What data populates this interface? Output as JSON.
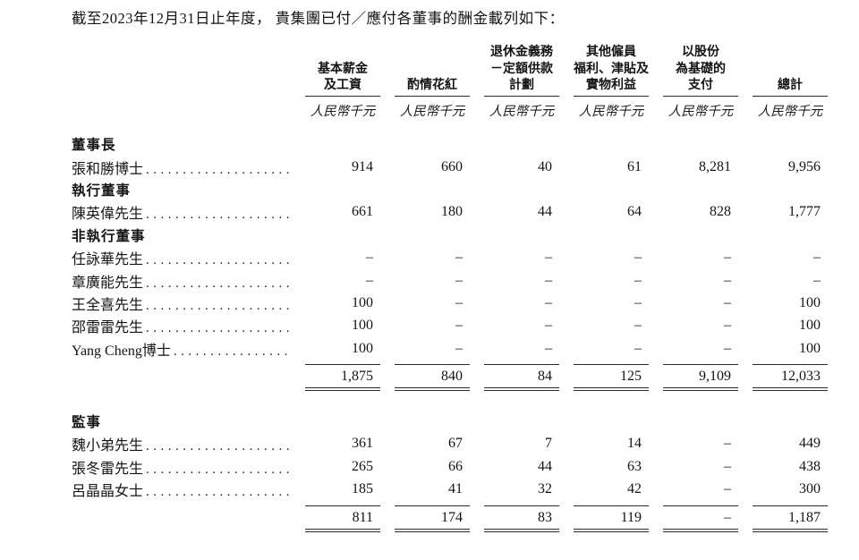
{
  "page": {
    "title_text": "截至2023年12月31日止年度， 貴集團已付／應付各董事的酬金載列如下："
  },
  "table": {
    "unit_label": "人民幣千元",
    "columns": [
      {
        "lines": [
          "基本薪金",
          "及工資"
        ]
      },
      {
        "lines": [
          "酌情花紅"
        ]
      },
      {
        "lines": [
          "退休金義務",
          "－定額供款",
          "計劃"
        ]
      },
      {
        "lines": [
          "其他僱員",
          "福利、津貼及",
          "實物利益"
        ]
      },
      {
        "lines": [
          "以股份",
          "為基礎的",
          "支付"
        ]
      },
      {
        "lines": [
          "總計"
        ]
      }
    ],
    "rows": [
      {
        "type": "section",
        "label": "董事長"
      },
      {
        "type": "data",
        "name": "張和勝博士",
        "values": [
          "914",
          "660",
          "40",
          "61",
          "8,281",
          "9,956"
        ]
      },
      {
        "type": "section",
        "label": "執行董事"
      },
      {
        "type": "data",
        "name": "陳英偉先生",
        "values": [
          "661",
          "180",
          "44",
          "64",
          "828",
          "1,777"
        ]
      },
      {
        "type": "section",
        "label": "非執行董事"
      },
      {
        "type": "data",
        "name": "任詠華先生",
        "values": [
          "–",
          "–",
          "–",
          "–",
          "–",
          "–"
        ]
      },
      {
        "type": "data",
        "name": "章廣能先生",
        "values": [
          "–",
          "–",
          "–",
          "–",
          "–",
          "–"
        ]
      },
      {
        "type": "data",
        "name": "王全喜先生",
        "values": [
          "100",
          "–",
          "–",
          "–",
          "–",
          "100"
        ]
      },
      {
        "type": "data",
        "name": "邵雷雷先生",
        "values": [
          "100",
          "–",
          "–",
          "–",
          "–",
          "100"
        ]
      },
      {
        "type": "data",
        "name": "Yang Cheng博士",
        "values": [
          "100",
          "–",
          "–",
          "–",
          "–",
          "100"
        ]
      },
      {
        "type": "subtotal",
        "values": [
          "1,875",
          "840",
          "84",
          "125",
          "9,109",
          "12,033"
        ]
      },
      {
        "type": "section",
        "label": "監事",
        "spaced": true
      },
      {
        "type": "data",
        "name": "魏小弟先生",
        "values": [
          "361",
          "67",
          "7",
          "14",
          "–",
          "449"
        ]
      },
      {
        "type": "data",
        "name": "張冬雷先生",
        "values": [
          "265",
          "66",
          "44",
          "63",
          "–",
          "438"
        ]
      },
      {
        "type": "data",
        "name": "呂晶晶女士",
        "values": [
          "185",
          "41",
          "32",
          "42",
          "–",
          "300"
        ]
      },
      {
        "type": "subtotal",
        "values": [
          "811",
          "174",
          "83",
          "119",
          "–",
          "1,187"
        ]
      }
    ]
  }
}
